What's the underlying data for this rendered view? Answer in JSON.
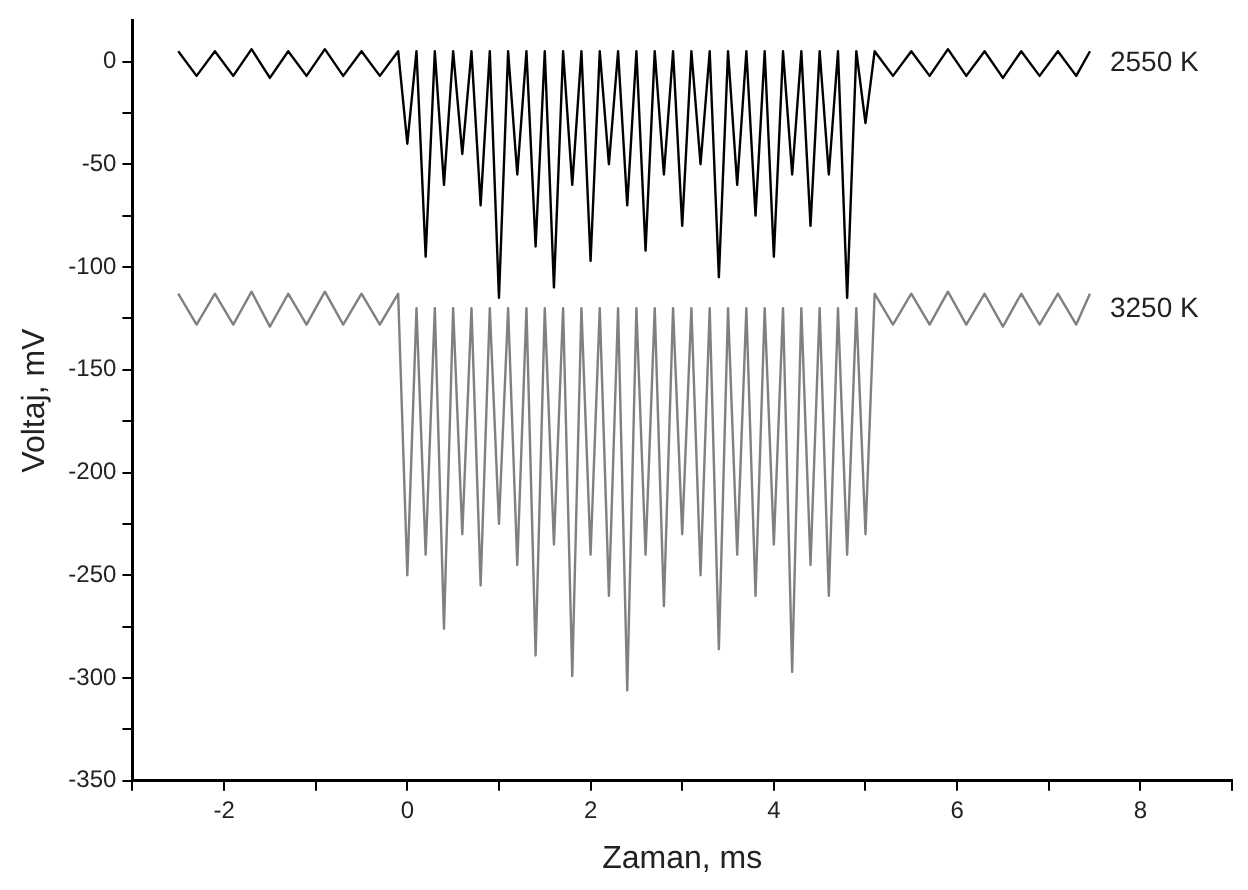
{
  "chart_data": {
    "type": "line",
    "xlabel": "Zaman, ms",
    "ylabel": "Voltaj, mV",
    "xlim": [
      -3,
      9
    ],
    "ylim": [
      -350,
      20
    ],
    "xticks": [
      {
        "value": -3,
        "label": null
      },
      -2,
      {
        "value": -1,
        "label": null
      },
      0,
      {
        "value": 1,
        "label": null
      },
      2,
      {
        "value": 3,
        "label": null
      },
      4,
      {
        "value": 5,
        "label": null
      },
      6,
      {
        "value": 7,
        "label": null
      },
      8,
      {
        "value": 9,
        "label": null
      }
    ],
    "yticks": [
      -350,
      {
        "value": -325,
        "label": null
      },
      -300,
      {
        "value": -275,
        "label": null
      },
      -250,
      {
        "value": -225,
        "label": null
      },
      -200,
      {
        "value": -175,
        "label": null
      },
      -150,
      {
        "value": -125,
        "label": null
      },
      -100,
      {
        "value": -75,
        "label": null
      },
      -50,
      {
        "value": -25,
        "label": null
      },
      0
    ],
    "grid": false,
    "legend": false,
    "marker": "none",
    "line_style": "solid",
    "series": [
      {
        "name": "2550 K",
        "color": "#000000",
        "x": [
          -2.5,
          -2.3,
          -2.1,
          -1.9,
          -1.7,
          -1.5,
          -1.3,
          -1.1,
          -0.9,
          -0.7,
          -0.5,
          -0.3,
          -0.1,
          0,
          0.1,
          0.2,
          0.3,
          0.4,
          0.5,
          0.6,
          0.7,
          0.8,
          0.9,
          1,
          1.1,
          1.2,
          1.3,
          1.4,
          1.5,
          1.6,
          1.7,
          1.8,
          1.9,
          2,
          2.1,
          2.2,
          2.3,
          2.4,
          2.5,
          2.6,
          2.7,
          2.8,
          2.9,
          3,
          3.1,
          3.2,
          3.3,
          3.4,
          3.5,
          3.6,
          3.7,
          3.8,
          3.9,
          4,
          4.1,
          4.2,
          4.3,
          4.4,
          4.5,
          4.6,
          4.7,
          4.8,
          4.9,
          5,
          5.1,
          5.3,
          5.5,
          5.7,
          5.9,
          6.1,
          6.3,
          6.5,
          6.7,
          6.9,
          7.1,
          7.3,
          7.45
        ],
        "values": [
          5,
          -7,
          5,
          -7,
          6,
          -8,
          5,
          -7,
          6,
          -7,
          5,
          -7,
          5,
          -40,
          5,
          -95,
          5,
          -60,
          5,
          -45,
          5,
          -70,
          5,
          -115,
          5,
          -55,
          5,
          -90,
          5,
          -110,
          5,
          -60,
          5,
          -97,
          5,
          -50,
          5,
          -70,
          5,
          -92,
          5,
          -55,
          5,
          -80,
          5,
          -50,
          5,
          -105,
          5,
          -60,
          5,
          -75,
          5,
          -95,
          5,
          -55,
          5,
          -80,
          5,
          -55,
          5,
          -115,
          5,
          -30,
          5,
          -7,
          5,
          -7,
          6,
          -7,
          5,
          -8,
          5,
          -7,
          5,
          -7,
          5
        ]
      },
      {
        "name": "3250 K",
        "color": "#808080",
        "x": [
          -2.5,
          -2.3,
          -2.1,
          -1.9,
          -1.7,
          -1.5,
          -1.3,
          -1.1,
          -0.9,
          -0.7,
          -0.5,
          -0.3,
          -0.1,
          0,
          0.1,
          0.2,
          0.3,
          0.4,
          0.5,
          0.6,
          0.7,
          0.8,
          0.9,
          1,
          1.1,
          1.2,
          1.3,
          1.4,
          1.5,
          1.6,
          1.7,
          1.8,
          1.9,
          2,
          2.1,
          2.2,
          2.3,
          2.4,
          2.5,
          2.6,
          2.7,
          2.8,
          2.9,
          3,
          3.1,
          3.2,
          3.3,
          3.4,
          3.5,
          3.6,
          3.7,
          3.8,
          3.9,
          4,
          4.1,
          4.2,
          4.3,
          4.4,
          4.5,
          4.6,
          4.7,
          4.8,
          4.9,
          5,
          5.1,
          5.3,
          5.5,
          5.7,
          5.9,
          6.1,
          6.3,
          6.5,
          6.7,
          6.9,
          7.1,
          7.3,
          7.45
        ],
        "values": [
          -113,
          -128,
          -113,
          -128,
          -112,
          -129,
          -113,
          -128,
          -112,
          -128,
          -113,
          -128,
          -113,
          -250,
          -120,
          -240,
          -120,
          -276,
          -120,
          -230,
          -120,
          -255,
          -120,
          -225,
          -120,
          -245,
          -120,
          -289,
          -120,
          -235,
          -120,
          -299,
          -120,
          -240,
          -120,
          -260,
          -120,
          -306,
          -120,
          -240,
          -120,
          -265,
          -120,
          -230,
          -120,
          -250,
          -120,
          -286,
          -120,
          -240,
          -120,
          -260,
          -120,
          -235,
          -120,
          -297,
          -120,
          -245,
          -120,
          -260,
          -120,
          -240,
          -120,
          -230,
          -113,
          -128,
          -113,
          -128,
          -112,
          -128,
          -113,
          -129,
          -113,
          -128,
          -113,
          -128,
          -113
        ]
      }
    ]
  }
}
